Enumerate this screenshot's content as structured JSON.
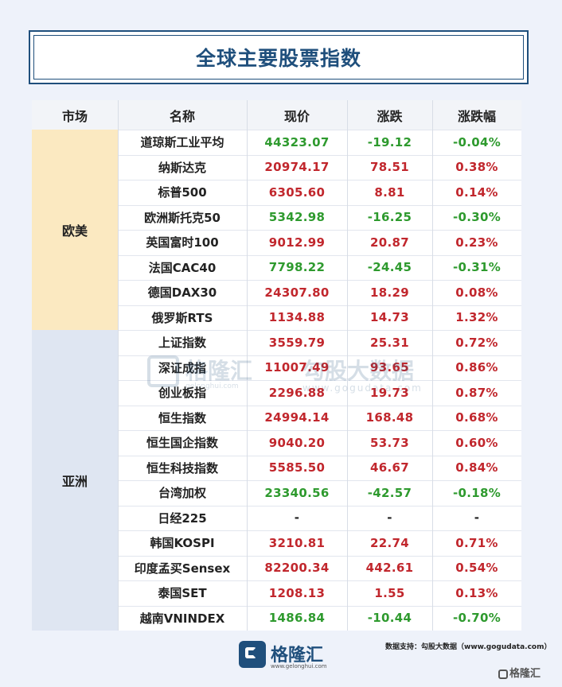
{
  "title": "全球主要股票指数",
  "headers": [
    "市场",
    "名称",
    "现价",
    "涨跌",
    "涨跌幅"
  ],
  "regions": [
    {
      "label": "欧美",
      "color": "#fbe9c1"
    },
    {
      "label": "亚洲",
      "color": "#dfe6f2"
    }
  ],
  "rows": [
    {
      "name": "道琼斯工业平均",
      "price": "44323.07",
      "change": "-19.12",
      "pct": "-0.04%",
      "dir": "down",
      "region": 0
    },
    {
      "name": "纳斯达克",
      "price": "20974.17",
      "change": "78.51",
      "pct": "0.38%",
      "dir": "up",
      "region": 0
    },
    {
      "name": "标普500",
      "price": "6305.60",
      "change": "8.81",
      "pct": "0.14%",
      "dir": "up",
      "region": 0
    },
    {
      "name": "欧洲斯托克50",
      "price": "5342.98",
      "change": "-16.25",
      "pct": "-0.30%",
      "dir": "down",
      "region": 0
    },
    {
      "name": "英国富时100",
      "price": "9012.99",
      "change": "20.87",
      "pct": "0.23%",
      "dir": "up",
      "region": 0
    },
    {
      "name": "法国CAC40",
      "price": "7798.22",
      "change": "-24.45",
      "pct": "-0.31%",
      "dir": "down",
      "region": 0
    },
    {
      "name": "德国DAX30",
      "price": "24307.80",
      "change": "18.29",
      "pct": "0.08%",
      "dir": "up",
      "region": 0
    },
    {
      "name": "俄罗斯RTS",
      "price": "1134.88",
      "change": "14.73",
      "pct": "1.32%",
      "dir": "up",
      "region": 0
    },
    {
      "name": "上证指数",
      "price": "3559.79",
      "change": "25.31",
      "pct": "0.72%",
      "dir": "up",
      "region": 1
    },
    {
      "name": "深证成指",
      "price": "11007.49",
      "change": "93.65",
      "pct": "0.86%",
      "dir": "up",
      "region": 1
    },
    {
      "name": "创业板指",
      "price": "2296.88",
      "change": "19.73",
      "pct": "0.87%",
      "dir": "up",
      "region": 1
    },
    {
      "name": "恒生指数",
      "price": "24994.14",
      "change": "168.48",
      "pct": "0.68%",
      "dir": "up",
      "region": 1
    },
    {
      "name": "恒生国企指数",
      "price": "9040.20",
      "change": "53.73",
      "pct": "0.60%",
      "dir": "up",
      "region": 1
    },
    {
      "name": "恒生科技指数",
      "price": "5585.50",
      "change": "46.67",
      "pct": "0.84%",
      "dir": "up",
      "region": 1
    },
    {
      "name": "台湾加权",
      "price": "23340.56",
      "change": "-42.57",
      "pct": "-0.18%",
      "dir": "down",
      "region": 1
    },
    {
      "name": "日经225",
      "price": "-",
      "change": "-",
      "pct": "-",
      "dir": "flat",
      "region": 1
    },
    {
      "name": "韩国KOSPI",
      "price": "3210.81",
      "change": "22.74",
      "pct": "0.71%",
      "dir": "up",
      "region": 1
    },
    {
      "name": "印度孟买Sensex",
      "price": "82200.34",
      "change": "442.61",
      "pct": "0.54%",
      "dir": "up",
      "region": 1
    },
    {
      "name": "泰国SET",
      "price": "1208.13",
      "change": "1.55",
      "pct": "0.13%",
      "dir": "up",
      "region": 1
    },
    {
      "name": "越南VNINDEX",
      "price": "1486.84",
      "change": "-10.44",
      "pct": "-0.70%",
      "dir": "down",
      "region": 1
    }
  ],
  "colors": {
    "up": "#c1272d",
    "down": "#2e9a2e",
    "title": "#1f4f7c",
    "header_bg": "#f2f4f8"
  },
  "watermark": {
    "logo": "格隆汇",
    "logo_sub": "gelonghui.com",
    "data": "勾股大数据",
    "data_sub": "www.gogudata.com"
  },
  "footer": {
    "logo": "格隆汇",
    "logo_sub": "www.gelonghui.com",
    "source": "数据支持：勾股大数据（www.gogudata.com）",
    "corner": "格隆汇"
  }
}
